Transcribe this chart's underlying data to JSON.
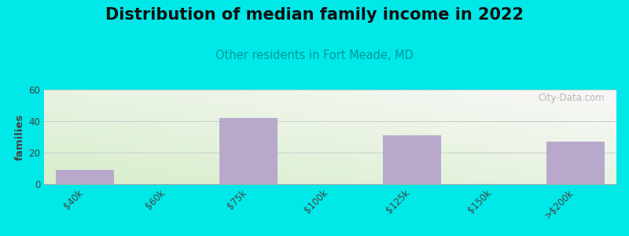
{
  "title": "Distribution of median family income in 2022",
  "subtitle": "Other residents in Fort Meade, MD",
  "categories": [
    "$40k",
    "$60k",
    "$75k",
    "$100k",
    "$125k",
    "$150k",
    ">$200k"
  ],
  "values": [
    9,
    0,
    42,
    0,
    31,
    0,
    27
  ],
  "bar_color": "#b8a9cc",
  "bar_width": 0.72,
  "ylabel": "families",
  "ylim": [
    0,
    60
  ],
  "yticks": [
    0,
    20,
    40,
    60
  ],
  "background_outer": "#00e8e8",
  "grad_bottom_left": "#d8eecb",
  "grad_top_right": "#f8f8f8",
  "title_fontsize": 15,
  "title_color": "#111111",
  "subtitle_color": "#009999",
  "subtitle_fontsize": 10.5,
  "watermark_text": "City-Data.com",
  "watermark_color": "#aaaaaa",
  "grid_color": "#cccccc",
  "tick_label_color": "#444444",
  "ylabel_color": "#444444",
  "spine_color": "#aaaaaa"
}
